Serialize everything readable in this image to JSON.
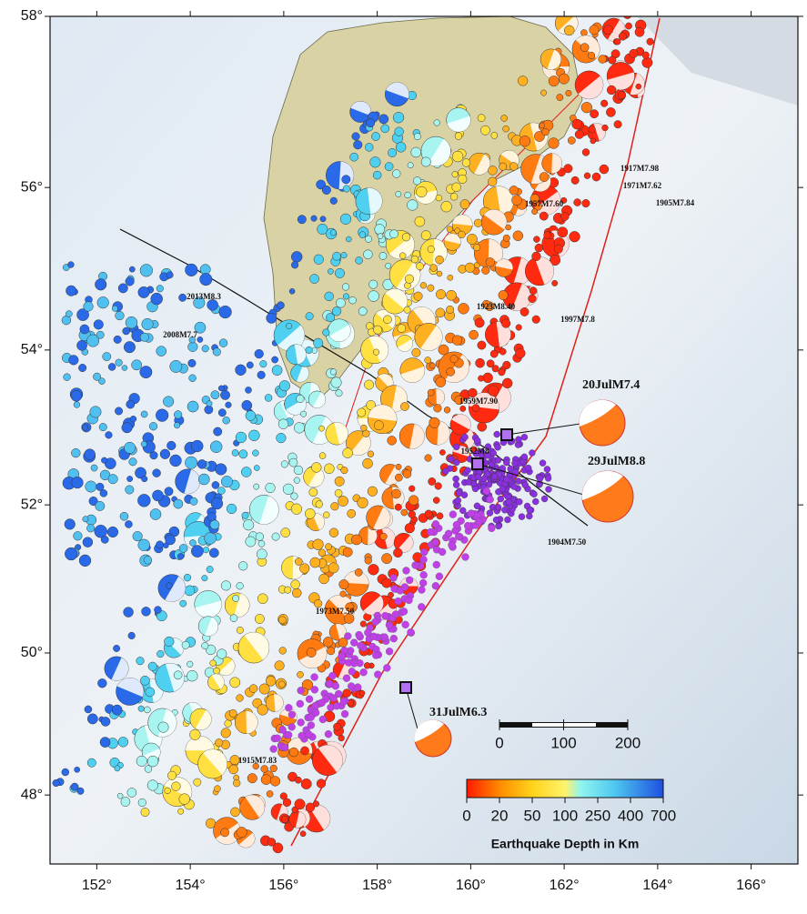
{
  "map": {
    "xlim": [
      151,
      167
    ],
    "ylim": [
      47,
      58
    ],
    "xticks": [
      {
        "value": 152,
        "label": "152°"
      },
      {
        "value": 154,
        "label": "154°"
      },
      {
        "value": 156,
        "label": "156°"
      },
      {
        "value": 158,
        "label": "158°"
      },
      {
        "value": 160,
        "label": "160°"
      },
      {
        "value": 162,
        "label": "162°"
      },
      {
        "value": 164,
        "label": "164°"
      },
      {
        "value": 166,
        "label": "166°"
      }
    ],
    "yticks": [
      {
        "value": 48,
        "label": "48°"
      },
      {
        "value": 50,
        "label": "50°"
      },
      {
        "value": 52,
        "label": "52°"
      },
      {
        "value": 54,
        "label": "54°"
      },
      {
        "value": 56,
        "label": "56°"
      },
      {
        "value": 58,
        "label": "58°"
      }
    ],
    "historic_events": [
      "2013M8.3",
      "2008M7.7",
      "1923M8.40",
      "1997M7.8",
      "1957M7.60",
      "1917M7.98",
      "1971M7.62",
      "1905M7.84",
      "1959M7.90",
      "1952M8",
      "1904M7.50",
      "1973M7.50",
      "1915M7.83"
    ],
    "recent_events": [
      "20JulM7.4",
      "29JulM8.8",
      "31JulM6.3"
    ],
    "scale_bar": {
      "ticks": [
        0,
        100,
        200
      ]
    },
    "depth_legend": {
      "title": "Earthquake Depth in Km",
      "ticks": [
        0,
        20,
        50,
        100,
        250,
        400,
        700
      ]
    }
  }
}
